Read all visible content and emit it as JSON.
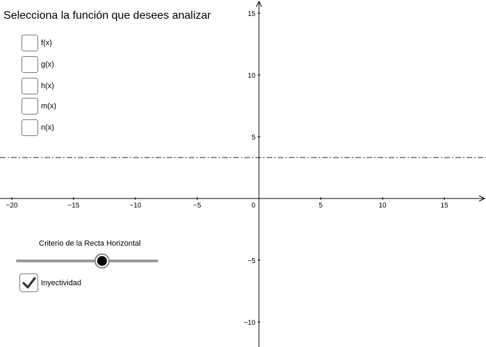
{
  "title": "Selecciona la función que desees analizar",
  "functions": [
    {
      "label": "f(x)",
      "checked": false
    },
    {
      "label": "g(x)",
      "checked": false
    },
    {
      "label": "h(x)",
      "checked": false
    },
    {
      "label": "m(x)",
      "checked": false
    },
    {
      "label": "n(x)",
      "checked": false
    }
  ],
  "slider": {
    "label": "Criterio de la Recta Horizontal",
    "value_fraction": 0.6
  },
  "checkbox_injectivity": {
    "label": "Inyectividad",
    "checked": true
  },
  "graph": {
    "x_ticks": [
      "−20",
      "−15",
      "−10",
      "−5",
      "0",
      "5",
      "10",
      "15"
    ],
    "y_ticks": [
      "15",
      "10",
      "5",
      "−5",
      "−10"
    ],
    "horizontal_line_y": 3.3,
    "line_color": "#1f5d7a"
  }
}
